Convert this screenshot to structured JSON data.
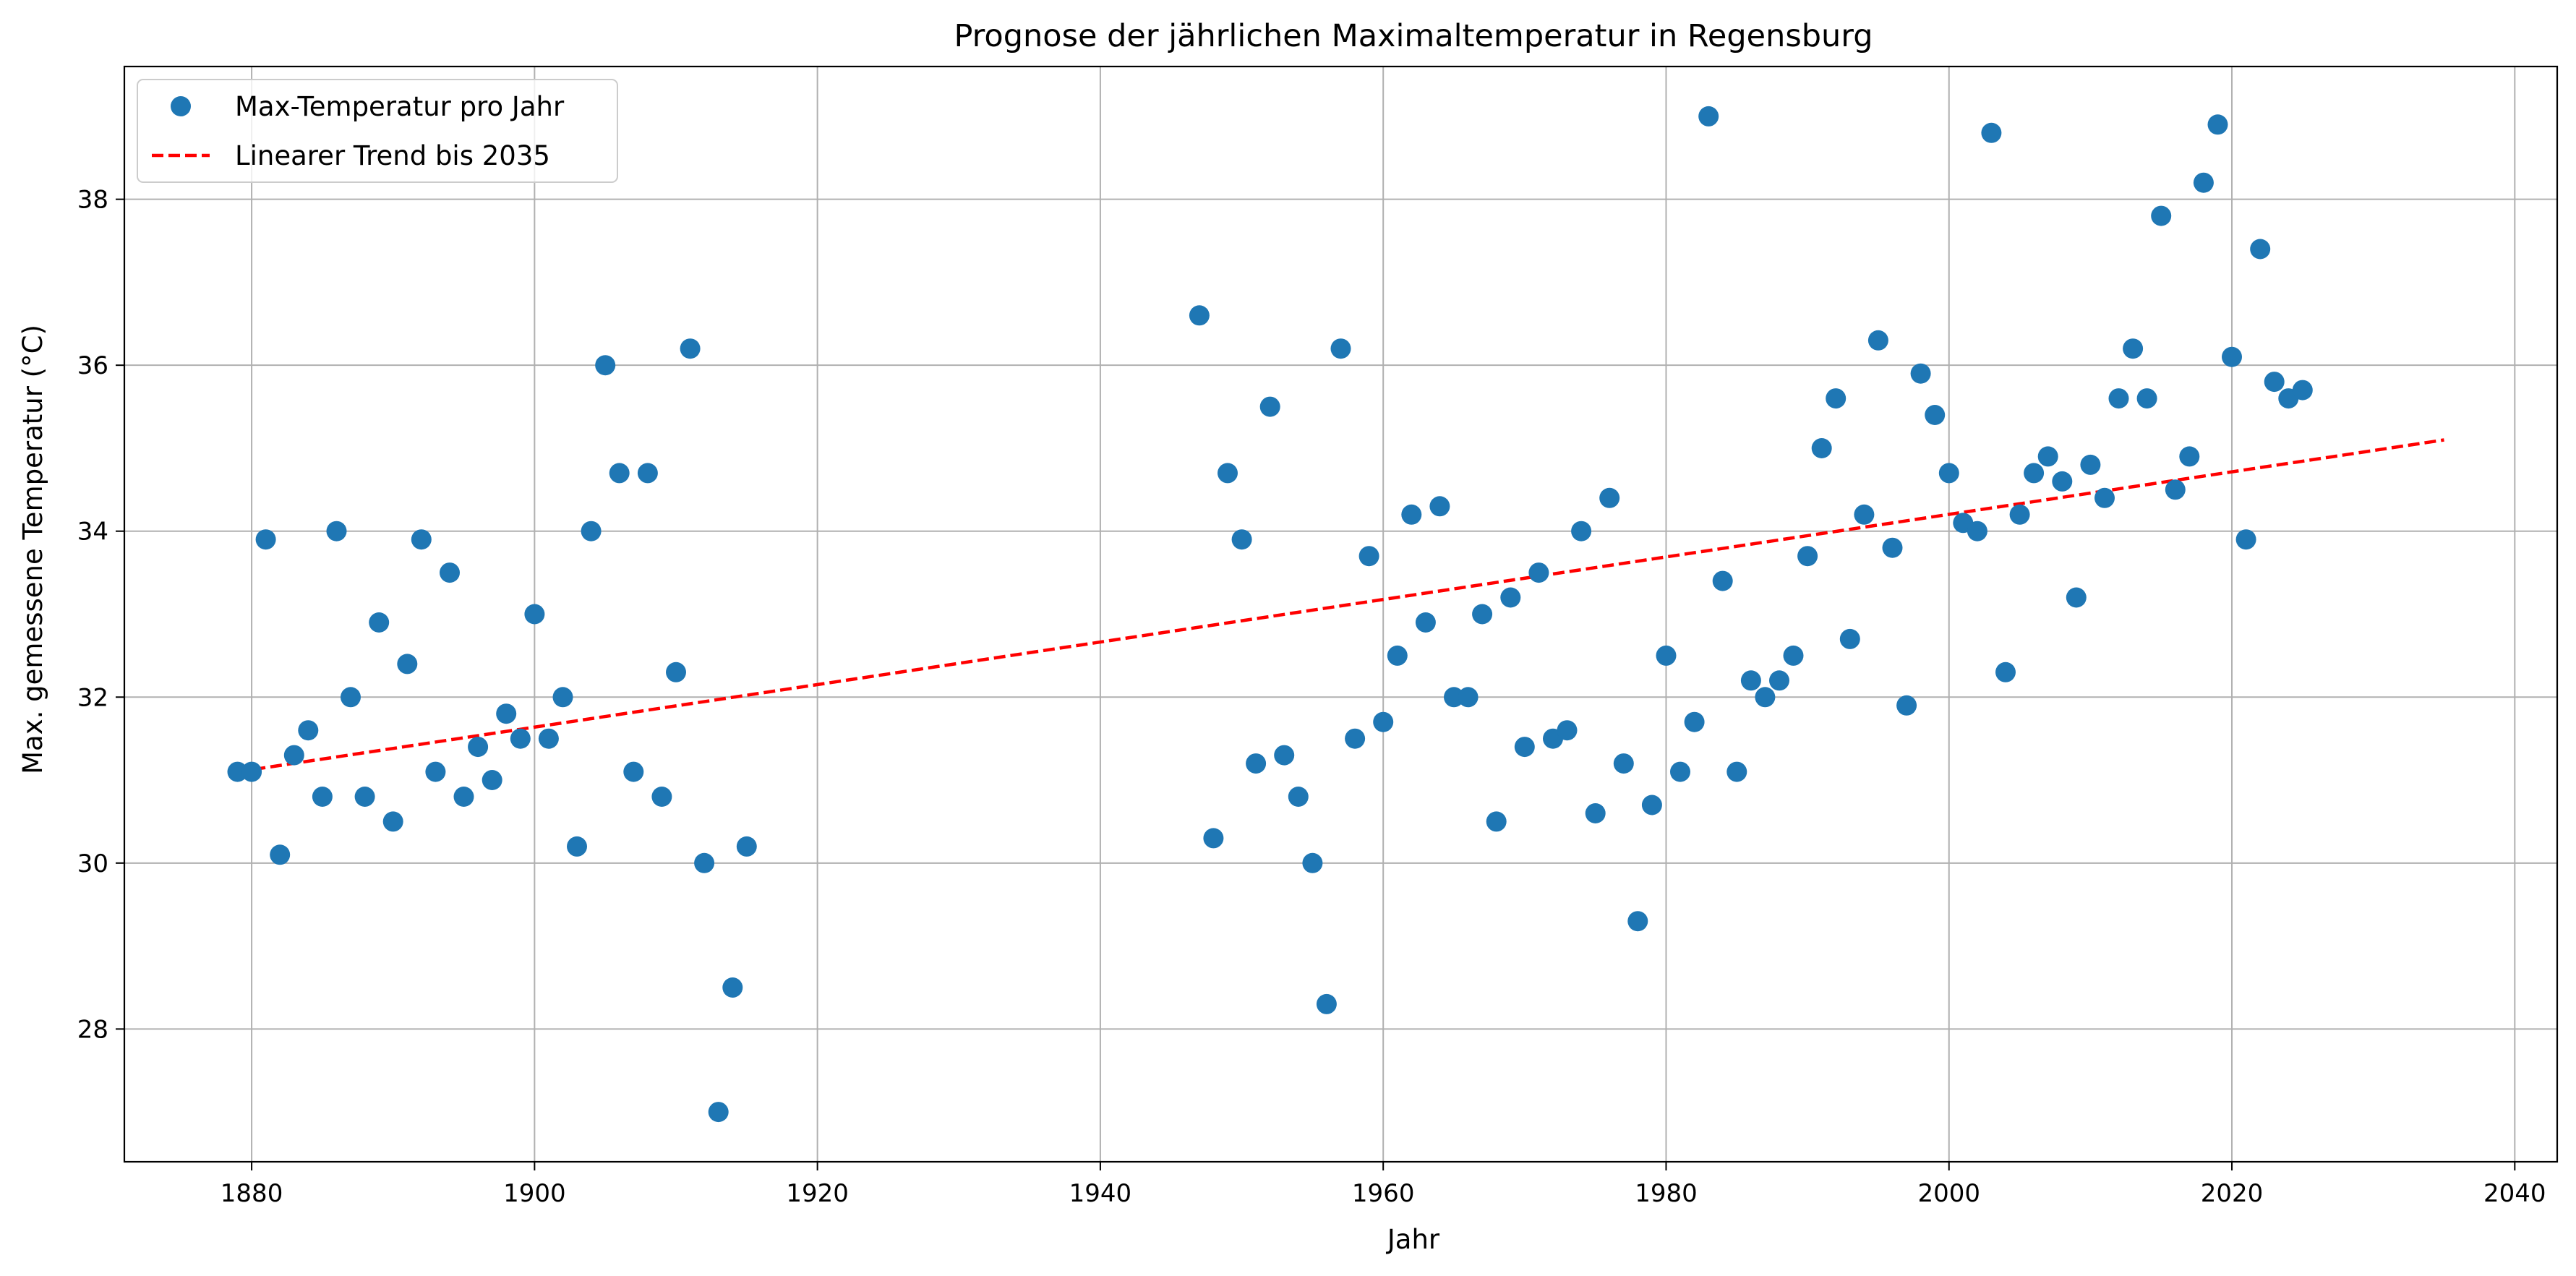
{
  "chart_data": {
    "type": "scatter",
    "title": "Prognose der jährlichen Maximaltemperatur in Regensburg",
    "xlabel": "Jahr",
    "ylabel": "Max. gemessene Temperatur (°C)",
    "xlim": [
      1871,
      2043
    ],
    "ylim": [
      26.4,
      39.6
    ],
    "xticks": [
      1880,
      1900,
      1920,
      1940,
      1960,
      1980,
      2000,
      2020,
      2040
    ],
    "yticks": [
      28,
      30,
      32,
      34,
      36,
      38
    ],
    "grid": true,
    "legend_position": "top-left",
    "colors": {
      "points": "#1f77b4",
      "trend": "#ff0000",
      "grid": "#b0b0b0"
    },
    "series": [
      {
        "name": "Max-Temperatur pro Jahr",
        "kind": "points",
        "points": [
          [
            1879,
            31.1
          ],
          [
            1880,
            31.1
          ],
          [
            1881,
            33.9
          ],
          [
            1882,
            30.1
          ],
          [
            1883,
            31.3
          ],
          [
            1884,
            31.6
          ],
          [
            1885,
            30.8
          ],
          [
            1886,
            34.0
          ],
          [
            1887,
            32.0
          ],
          [
            1888,
            30.8
          ],
          [
            1889,
            32.9
          ],
          [
            1890,
            30.5
          ],
          [
            1891,
            32.4
          ],
          [
            1892,
            33.9
          ],
          [
            1893,
            31.1
          ],
          [
            1894,
            33.5
          ],
          [
            1895,
            30.8
          ],
          [
            1896,
            31.4
          ],
          [
            1897,
            31.0
          ],
          [
            1898,
            31.8
          ],
          [
            1899,
            31.5
          ],
          [
            1900,
            33.0
          ],
          [
            1901,
            31.5
          ],
          [
            1902,
            32.0
          ],
          [
            1903,
            30.2
          ],
          [
            1904,
            34.0
          ],
          [
            1905,
            36.0
          ],
          [
            1906,
            34.7
          ],
          [
            1907,
            31.1
          ],
          [
            1908,
            34.7
          ],
          [
            1909,
            30.8
          ],
          [
            1910,
            32.3
          ],
          [
            1911,
            36.2
          ],
          [
            1912,
            30.0
          ],
          [
            1913,
            27.0
          ],
          [
            1914,
            28.5
          ],
          [
            1915,
            30.2
          ],
          [
            1947,
            36.6
          ],
          [
            1948,
            30.3
          ],
          [
            1949,
            34.7
          ],
          [
            1950,
            33.9
          ],
          [
            1951,
            31.2
          ],
          [
            1952,
            35.5
          ],
          [
            1953,
            31.3
          ],
          [
            1954,
            30.8
          ],
          [
            1955,
            30.0
          ],
          [
            1956,
            28.3
          ],
          [
            1957,
            36.2
          ],
          [
            1958,
            31.5
          ],
          [
            1959,
            33.7
          ],
          [
            1960,
            31.7
          ],
          [
            1961,
            32.5
          ],
          [
            1962,
            34.2
          ],
          [
            1963,
            32.9
          ],
          [
            1964,
            34.3
          ],
          [
            1965,
            32.0
          ],
          [
            1966,
            32.0
          ],
          [
            1967,
            33.0
          ],
          [
            1968,
            30.5
          ],
          [
            1969,
            33.2
          ],
          [
            1970,
            31.4
          ],
          [
            1971,
            33.5
          ],
          [
            1972,
            31.5
          ],
          [
            1973,
            31.6
          ],
          [
            1974,
            34.0
          ],
          [
            1975,
            30.6
          ],
          [
            1976,
            34.4
          ],
          [
            1977,
            31.2
          ],
          [
            1978,
            29.3
          ],
          [
            1979,
            30.7
          ],
          [
            1980,
            32.5
          ],
          [
            1981,
            31.1
          ],
          [
            1982,
            31.7
          ],
          [
            1983,
            39.0
          ],
          [
            1984,
            33.4
          ],
          [
            1985,
            31.1
          ],
          [
            1986,
            32.2
          ],
          [
            1987,
            32.0
          ],
          [
            1988,
            32.2
          ],
          [
            1989,
            32.5
          ],
          [
            1990,
            33.7
          ],
          [
            1991,
            35.0
          ],
          [
            1992,
            35.6
          ],
          [
            1993,
            32.7
          ],
          [
            1994,
            34.2
          ],
          [
            1995,
            36.3
          ],
          [
            1996,
            33.8
          ],
          [
            1997,
            31.9
          ],
          [
            1998,
            35.9
          ],
          [
            1999,
            35.4
          ],
          [
            2000,
            34.7
          ],
          [
            2001,
            34.1
          ],
          [
            2002,
            34.0
          ],
          [
            2003,
            38.8
          ],
          [
            2004,
            32.3
          ],
          [
            2005,
            34.2
          ],
          [
            2006,
            34.7
          ],
          [
            2007,
            34.9
          ],
          [
            2008,
            34.6
          ],
          [
            2009,
            33.2
          ],
          [
            2010,
            34.8
          ],
          [
            2011,
            34.4
          ],
          [
            2012,
            35.6
          ],
          [
            2013,
            36.2
          ],
          [
            2014,
            35.6
          ],
          [
            2015,
            37.8
          ],
          [
            2016,
            34.5
          ],
          [
            2017,
            34.9
          ],
          [
            2018,
            38.2
          ],
          [
            2019,
            38.9
          ],
          [
            2020,
            36.1
          ],
          [
            2021,
            33.9
          ],
          [
            2022,
            37.4
          ],
          [
            2023,
            35.8
          ],
          [
            2024,
            35.6
          ],
          [
            2025,
            35.7
          ]
        ]
      },
      {
        "name": "Linearer Trend bis 2035",
        "kind": "line",
        "points": [
          [
            1879,
            31.1
          ],
          [
            2035,
            35.1
          ]
        ]
      }
    ]
  }
}
